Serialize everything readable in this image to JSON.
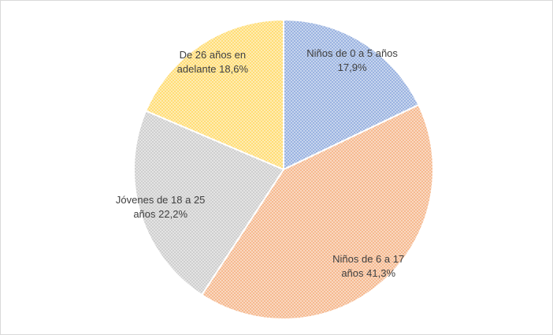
{
  "chart_data": {
    "type": "pie",
    "categories": [
      "Niños de 0 a 5 años",
      "Niños de 6 a 17 años",
      "Jóvenes de 18 a 25 años",
      "De 26 años en adelante"
    ],
    "values": [
      17.9,
      41.3,
      22.2,
      18.6
    ],
    "value_labels": [
      "17,9%",
      "41,3%",
      "22,2%",
      "18,6%"
    ],
    "colors": [
      "#8faadc",
      "#f4b183",
      "#c9c9c9",
      "#ffd966"
    ]
  }
}
